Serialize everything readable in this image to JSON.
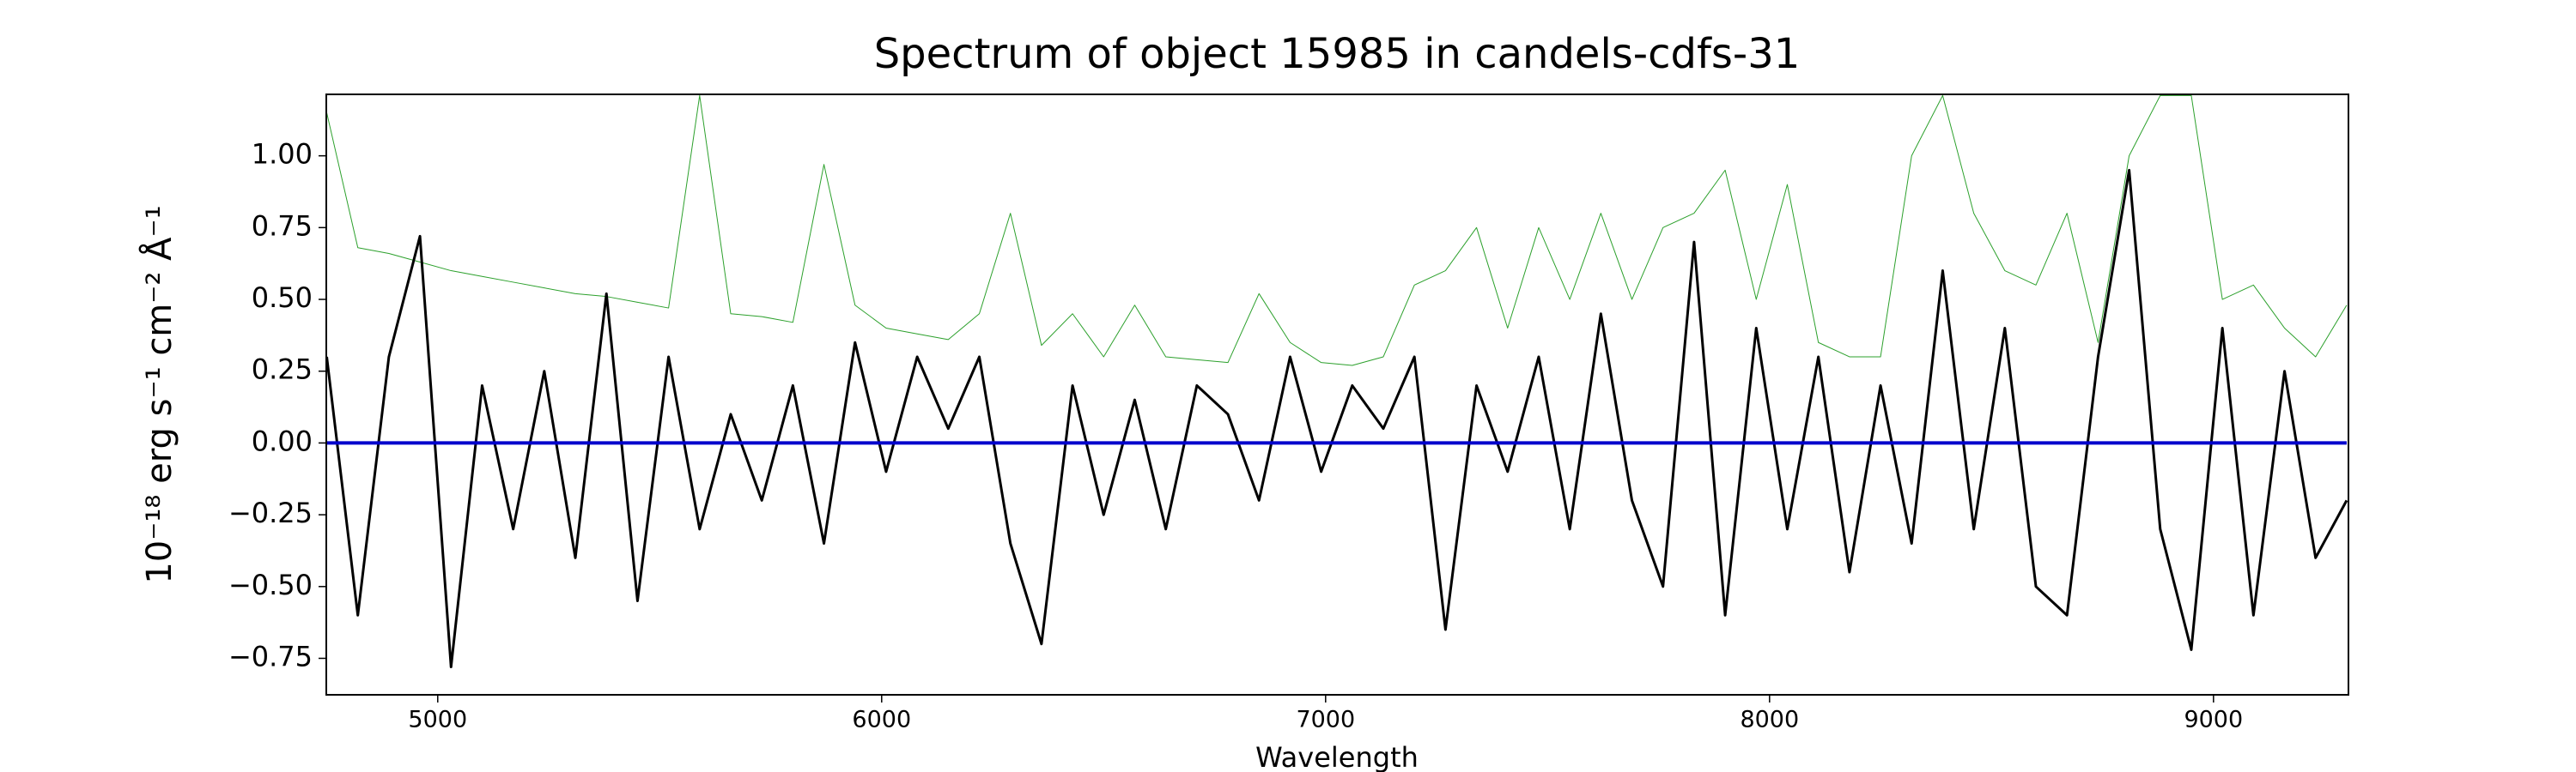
{
  "chart_data": {
    "type": "line",
    "title": "Spectrum of object 15985 in candels-cdfs-31",
    "x_label": "Wavelength",
    "y_label": "10⁻¹⁸ erg s⁻¹ cm⁻² Å⁻¹",
    "x": [
      4750,
      4820,
      4890,
      4960,
      5030,
      5100,
      5170,
      5240,
      5310,
      5380,
      5450,
      5520,
      5590,
      5660,
      5730,
      5800,
      5870,
      5940,
      6010,
      6080,
      6150,
      6220,
      6290,
      6360,
      6430,
      6500,
      6570,
      6640,
      6710,
      6780,
      6850,
      6920,
      6990,
      7060,
      7130,
      7200,
      7270,
      7340,
      7410,
      7480,
      7550,
      7620,
      7690,
      7760,
      7830,
      7900,
      7970,
      8040,
      8110,
      8180,
      8250,
      8320,
      8390,
      8460,
      8530,
      8600,
      8670,
      8740,
      8810,
      8880,
      8950,
      9020,
      9090,
      9160,
      9230,
      9300
    ],
    "series": [
      {
        "color": "#2ca02c",
        "width": 1,
        "values": [
          1.15,
          0.68,
          0.66,
          0.63,
          0.6,
          0.58,
          0.56,
          0.54,
          0.52,
          0.51,
          0.49,
          0.47,
          1.21,
          0.45,
          0.44,
          0.42,
          0.97,
          0.48,
          0.4,
          0.38,
          0.36,
          0.45,
          0.8,
          0.34,
          0.45,
          0.3,
          0.48,
          0.3,
          0.29,
          0.28,
          0.52,
          0.35,
          0.28,
          0.27,
          0.3,
          0.55,
          0.6,
          0.75,
          0.4,
          0.75,
          0.5,
          0.8,
          0.5,
          0.75,
          0.8,
          0.95,
          0.5,
          0.9,
          0.35,
          0.3,
          0.3,
          1.0,
          1.21,
          0.8,
          0.6,
          0.55,
          0.8,
          0.35,
          1.0,
          1.21,
          1.21,
          0.5,
          0.55,
          0.4,
          0.3,
          0.48
        ]
      },
      {
        "color": "#000000",
        "width": 3,
        "values": [
          0.3,
          -0.6,
          0.3,
          0.72,
          -0.78,
          0.2,
          -0.3,
          0.25,
          -0.4,
          0.52,
          -0.55,
          0.3,
          -0.3,
          0.1,
          -0.2,
          0.2,
          -0.35,
          0.35,
          -0.1,
          0.3,
          0.05,
          0.3,
          -0.35,
          -0.7,
          0.2,
          -0.25,
          0.15,
          -0.3,
          0.2,
          0.1,
          -0.2,
          0.3,
          -0.1,
          0.2,
          0.05,
          0.3,
          -0.65,
          0.2,
          -0.1,
          0.3,
          -0.3,
          0.45,
          -0.2,
          -0.5,
          0.7,
          -0.6,
          0.4,
          -0.3,
          0.3,
          -0.45,
          0.2,
          -0.35,
          0.6,
          -0.3,
          0.4,
          -0.5,
          -0.6,
          0.3,
          0.95,
          -0.3,
          -0.72,
          0.4,
          -0.6,
          0.25,
          -0.4,
          -0.2
        ]
      },
      {
        "color": "#0000cc",
        "width": 4,
        "values": [
          0,
          0,
          0,
          0,
          0,
          0,
          0,
          0,
          0,
          0,
          0,
          0,
          0,
          0,
          0,
          0,
          0,
          0,
          0,
          0,
          0,
          0,
          0,
          0,
          0,
          0,
          0,
          0,
          0,
          0,
          0,
          0,
          0,
          0,
          0,
          0,
          0,
          0,
          0,
          0,
          0,
          0,
          0,
          0,
          0,
          0,
          0,
          0,
          0,
          0,
          0,
          0,
          0,
          0,
          0,
          0,
          0,
          0,
          0,
          0,
          0,
          0,
          0,
          0,
          0,
          0
        ]
      }
    ],
    "xlim": [
      4749,
      9304
    ],
    "ylim": [
      -0.877,
      1.214
    ],
    "xticks": [
      5000,
      6000,
      7000,
      8000,
      9000
    ],
    "yticks": [
      {
        "value": 1.0,
        "label": "1.00"
      },
      {
        "value": 0.75,
        "label": "0.75"
      },
      {
        "value": 0.5,
        "label": "0.50"
      },
      {
        "value": 0.25,
        "label": "0.25"
      },
      {
        "value": 0,
        "label": "0.00"
      },
      {
        "value": -0.25,
        "label": "−0.25"
      },
      {
        "value": -0.5,
        "label": "−0.50"
      },
      {
        "value": -0.75,
        "label": "−0.75"
      }
    ],
    "grid": false
  }
}
